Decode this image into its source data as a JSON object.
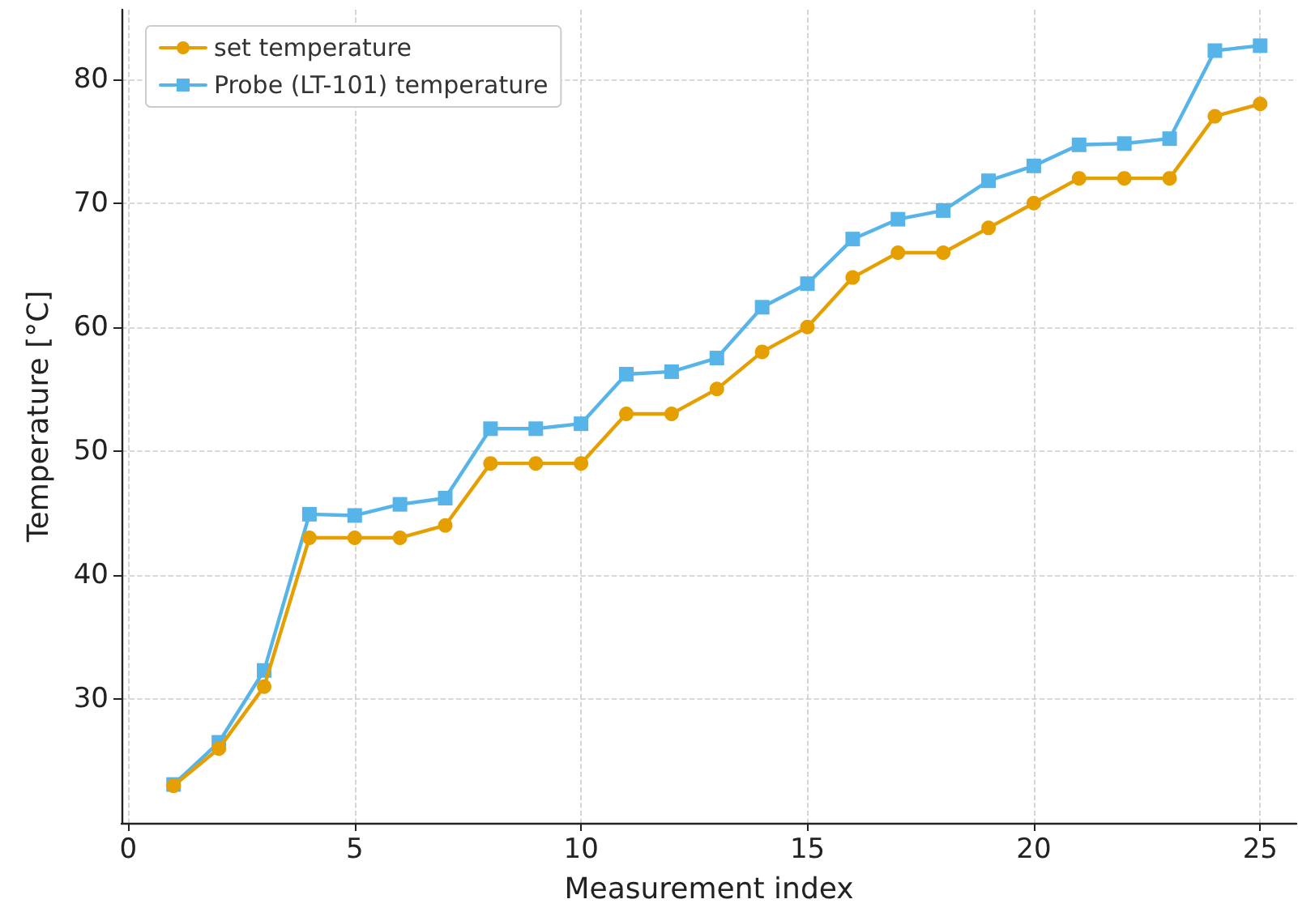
{
  "chart_data": {
    "type": "line",
    "xlabel": "Measurement index",
    "ylabel": "Temperature [°C]",
    "x": [
      1,
      2,
      3,
      4,
      5,
      6,
      7,
      8,
      9,
      10,
      11,
      12,
      13,
      14,
      15,
      16,
      17,
      18,
      19,
      20,
      21,
      22,
      23,
      24,
      25
    ],
    "series": [
      {
        "name": "set temperature",
        "color": "#e69f00",
        "marker": "circle",
        "values": [
          23,
          26,
          31,
          43,
          43,
          43,
          44,
          49,
          49,
          49,
          53,
          53,
          55,
          58,
          60,
          64,
          66,
          66,
          68,
          70,
          72,
          72,
          72,
          77,
          78
        ]
      },
      {
        "name": "Probe (LT-101) temperature",
        "color": "#56b4e9",
        "marker": "square",
        "values": [
          23.1,
          26.5,
          32.3,
          44.9,
          44.8,
          45.7,
          46.2,
          51.8,
          51.8,
          52.2,
          56.2,
          56.4,
          57.5,
          61.6,
          63.5,
          67.1,
          68.7,
          69.4,
          71.8,
          73.0,
          74.7,
          74.8,
          75.2,
          82.3,
          82.7
        ]
      }
    ],
    "xlim": [
      -0.15,
      25.8
    ],
    "xticks": [
      0,
      5,
      10,
      15,
      20,
      25
    ],
    "ylim": [
      20,
      85.6
    ],
    "yticks": [
      30,
      40,
      50,
      60,
      70,
      80
    ],
    "grid": true,
    "legend": "top left",
    "line_style": "solid"
  }
}
